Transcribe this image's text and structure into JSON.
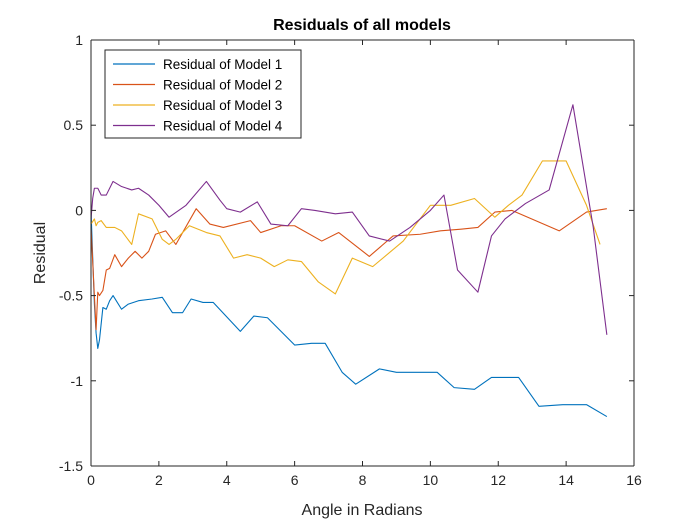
{
  "chart_data": {
    "type": "line",
    "title": "Residuals of all models",
    "xlabel": "Angle in Radians",
    "ylabel": "Residual",
    "xlim": [
      0,
      16
    ],
    "ylim": [
      -1.5,
      1
    ],
    "xticks": [
      0,
      2,
      4,
      6,
      8,
      10,
      12,
      14,
      16
    ],
    "yticks": [
      -1.5,
      -1,
      -0.5,
      0,
      0.5,
      1
    ],
    "xtick_labels": [
      "0",
      "2",
      "4",
      "6",
      "8",
      "10",
      "12",
      "14",
      "16"
    ],
    "ytick_labels": [
      "-1.5",
      "-1",
      "-0.5",
      "0",
      "0.5",
      "1"
    ],
    "grid": false,
    "legend_position": "top-left",
    "series": [
      {
        "name": "Residual of Model 1",
        "color": "#0072BD",
        "points": [
          [
            0,
            0
          ],
          [
            0.1,
            -0.55
          ],
          [
            0.15,
            -0.72
          ],
          [
            0.2,
            -0.81
          ],
          [
            0.25,
            -0.76
          ],
          [
            0.35,
            -0.57
          ],
          [
            0.45,
            -0.58
          ],
          [
            0.55,
            -0.53
          ],
          [
            0.65,
            -0.5
          ],
          [
            0.9,
            -0.58
          ],
          [
            1.1,
            -0.55
          ],
          [
            1.4,
            -0.53
          ],
          [
            1.8,
            -0.52
          ],
          [
            2.1,
            -0.51
          ],
          [
            2.4,
            -0.6
          ],
          [
            2.7,
            -0.6
          ],
          [
            2.95,
            -0.52
          ],
          [
            3.3,
            -0.54
          ],
          [
            3.6,
            -0.54
          ],
          [
            4.4,
            -0.71
          ],
          [
            4.8,
            -0.62
          ],
          [
            5.2,
            -0.63
          ],
          [
            6.0,
            -0.79
          ],
          [
            6.5,
            -0.78
          ],
          [
            6.9,
            -0.78
          ],
          [
            7.4,
            -0.95
          ],
          [
            7.8,
            -1.02
          ],
          [
            8.5,
            -0.93
          ],
          [
            9.0,
            -0.95
          ],
          [
            9.7,
            -0.95
          ],
          [
            10.2,
            -0.95
          ],
          [
            10.7,
            -1.04
          ],
          [
            11.3,
            -1.05
          ],
          [
            11.8,
            -0.98
          ],
          [
            12.3,
            -0.98
          ],
          [
            12.6,
            -0.98
          ],
          [
            13.2,
            -1.15
          ],
          [
            13.9,
            -1.14
          ],
          [
            14.6,
            -1.14
          ],
          [
            15.2,
            -1.21
          ]
        ]
      },
      {
        "name": "Residual of Model 2",
        "color": "#D95319",
        "points": [
          [
            0,
            -0.1
          ],
          [
            0.1,
            -0.5
          ],
          [
            0.15,
            -0.7
          ],
          [
            0.2,
            -0.48
          ],
          [
            0.25,
            -0.5
          ],
          [
            0.35,
            -0.47
          ],
          [
            0.45,
            -0.35
          ],
          [
            0.55,
            -0.34
          ],
          [
            0.7,
            -0.26
          ],
          [
            0.9,
            -0.33
          ],
          [
            1.1,
            -0.28
          ],
          [
            1.3,
            -0.24
          ],
          [
            1.5,
            -0.28
          ],
          [
            1.7,
            -0.24
          ],
          [
            1.9,
            -0.14
          ],
          [
            2.2,
            -0.12
          ],
          [
            2.5,
            -0.2
          ],
          [
            3.1,
            0.01
          ],
          [
            3.5,
            -0.08
          ],
          [
            3.9,
            -0.1
          ],
          [
            4.7,
            -0.06
          ],
          [
            5.0,
            -0.13
          ],
          [
            5.6,
            -0.09
          ],
          [
            6.0,
            -0.09
          ],
          [
            6.8,
            -0.18
          ],
          [
            7.3,
            -0.13
          ],
          [
            8.2,
            -0.27
          ],
          [
            8.9,
            -0.15
          ],
          [
            9.7,
            -0.14
          ],
          [
            10.3,
            -0.12
          ],
          [
            10.9,
            -0.11
          ],
          [
            11.4,
            -0.1
          ],
          [
            11.9,
            -0.01
          ],
          [
            12.4,
            0.0
          ],
          [
            13.8,
            -0.12
          ],
          [
            14.6,
            -0.01
          ],
          [
            15.2,
            0.01
          ]
        ]
      },
      {
        "name": "Residual of Model 3",
        "color": "#EDB120",
        "points": [
          [
            0,
            -0.08
          ],
          [
            0.1,
            -0.05
          ],
          [
            0.15,
            -0.09
          ],
          [
            0.2,
            -0.07
          ],
          [
            0.3,
            -0.06
          ],
          [
            0.45,
            -0.1
          ],
          [
            0.7,
            -0.1
          ],
          [
            0.9,
            -0.12
          ],
          [
            1.2,
            -0.2
          ],
          [
            1.4,
            -0.02
          ],
          [
            1.8,
            -0.05
          ],
          [
            2.1,
            -0.17
          ],
          [
            2.3,
            -0.2
          ],
          [
            2.5,
            -0.17
          ],
          [
            2.9,
            -0.09
          ],
          [
            3.4,
            -0.13
          ],
          [
            3.8,
            -0.15
          ],
          [
            4.2,
            -0.28
          ],
          [
            4.6,
            -0.26
          ],
          [
            5.0,
            -0.28
          ],
          [
            5.4,
            -0.33
          ],
          [
            5.8,
            -0.29
          ],
          [
            6.2,
            -0.3
          ],
          [
            6.7,
            -0.42
          ],
          [
            7.2,
            -0.49
          ],
          [
            7.7,
            -0.28
          ],
          [
            8.3,
            -0.33
          ],
          [
            9.2,
            -0.18
          ],
          [
            10.0,
            0.03
          ],
          [
            10.6,
            0.03
          ],
          [
            11.3,
            0.07
          ],
          [
            11.9,
            -0.04
          ],
          [
            12.3,
            0.03
          ],
          [
            12.7,
            0.09
          ],
          [
            13.3,
            0.29
          ],
          [
            14.0,
            0.29
          ],
          [
            14.6,
            0.03
          ],
          [
            15.0,
            -0.2
          ]
        ]
      },
      {
        "name": "Residual of Model 4",
        "color": "#7E2F8E",
        "points": [
          [
            0,
            -0.05
          ],
          [
            0.05,
            0.07
          ],
          [
            0.1,
            0.13
          ],
          [
            0.2,
            0.13
          ],
          [
            0.3,
            0.09
          ],
          [
            0.45,
            0.09
          ],
          [
            0.65,
            0.17
          ],
          [
            0.9,
            0.14
          ],
          [
            1.2,
            0.12
          ],
          [
            1.4,
            0.13
          ],
          [
            1.7,
            0.09
          ],
          [
            2.0,
            0.03
          ],
          [
            2.3,
            -0.04
          ],
          [
            2.8,
            0.03
          ],
          [
            3.4,
            0.17
          ],
          [
            3.8,
            0.06
          ],
          [
            4.0,
            0.01
          ],
          [
            4.4,
            -0.01
          ],
          [
            4.9,
            0.05
          ],
          [
            5.3,
            -0.08
          ],
          [
            5.8,
            -0.09
          ],
          [
            6.2,
            0.01
          ],
          [
            6.6,
            0.0
          ],
          [
            7.2,
            -0.02
          ],
          [
            7.7,
            -0.01
          ],
          [
            8.2,
            -0.15
          ],
          [
            8.8,
            -0.18
          ],
          [
            9.4,
            -0.1
          ],
          [
            10.0,
            0.0
          ],
          [
            10.4,
            0.09
          ],
          [
            10.8,
            -0.35
          ],
          [
            11.4,
            -0.48
          ],
          [
            11.8,
            -0.15
          ],
          [
            12.2,
            -0.05
          ],
          [
            12.8,
            0.04
          ],
          [
            13.5,
            0.12
          ],
          [
            14.2,
            0.62
          ],
          [
            14.8,
            -0.1
          ],
          [
            15.2,
            -0.73
          ]
        ]
      }
    ]
  }
}
